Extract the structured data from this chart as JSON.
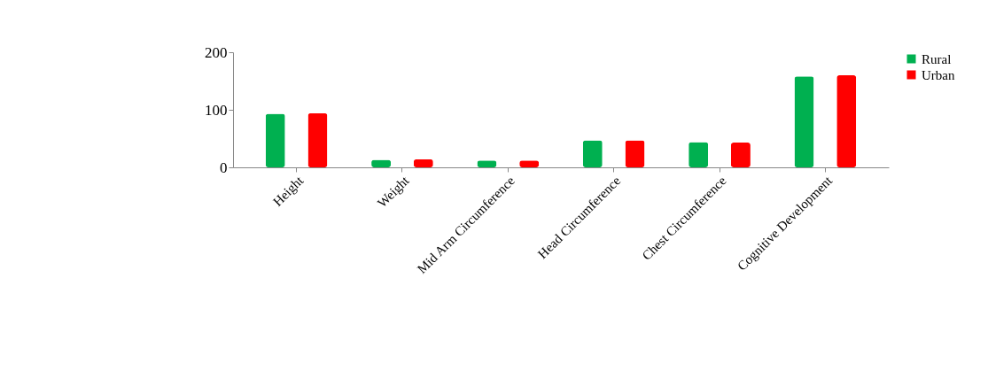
{
  "chart_data": {
    "type": "bar",
    "categories": [
      "Height",
      "Weight",
      "Mid Arm Circumference",
      "Head Circumference",
      "Chest Circumference",
      "Cognitive Development"
    ],
    "series": [
      {
        "name": "Rural",
        "color": "#00b050",
        "values": [
          93,
          13,
          12,
          47,
          44,
          158
        ]
      },
      {
        "name": "Urban",
        "color": "#ff0000",
        "values": [
          94,
          14,
          12,
          47,
          43,
          160
        ]
      }
    ],
    "ylim": [
      0,
      200
    ],
    "yticks": [
      0,
      100,
      200
    ],
    "grid": false,
    "legend": "right"
  }
}
